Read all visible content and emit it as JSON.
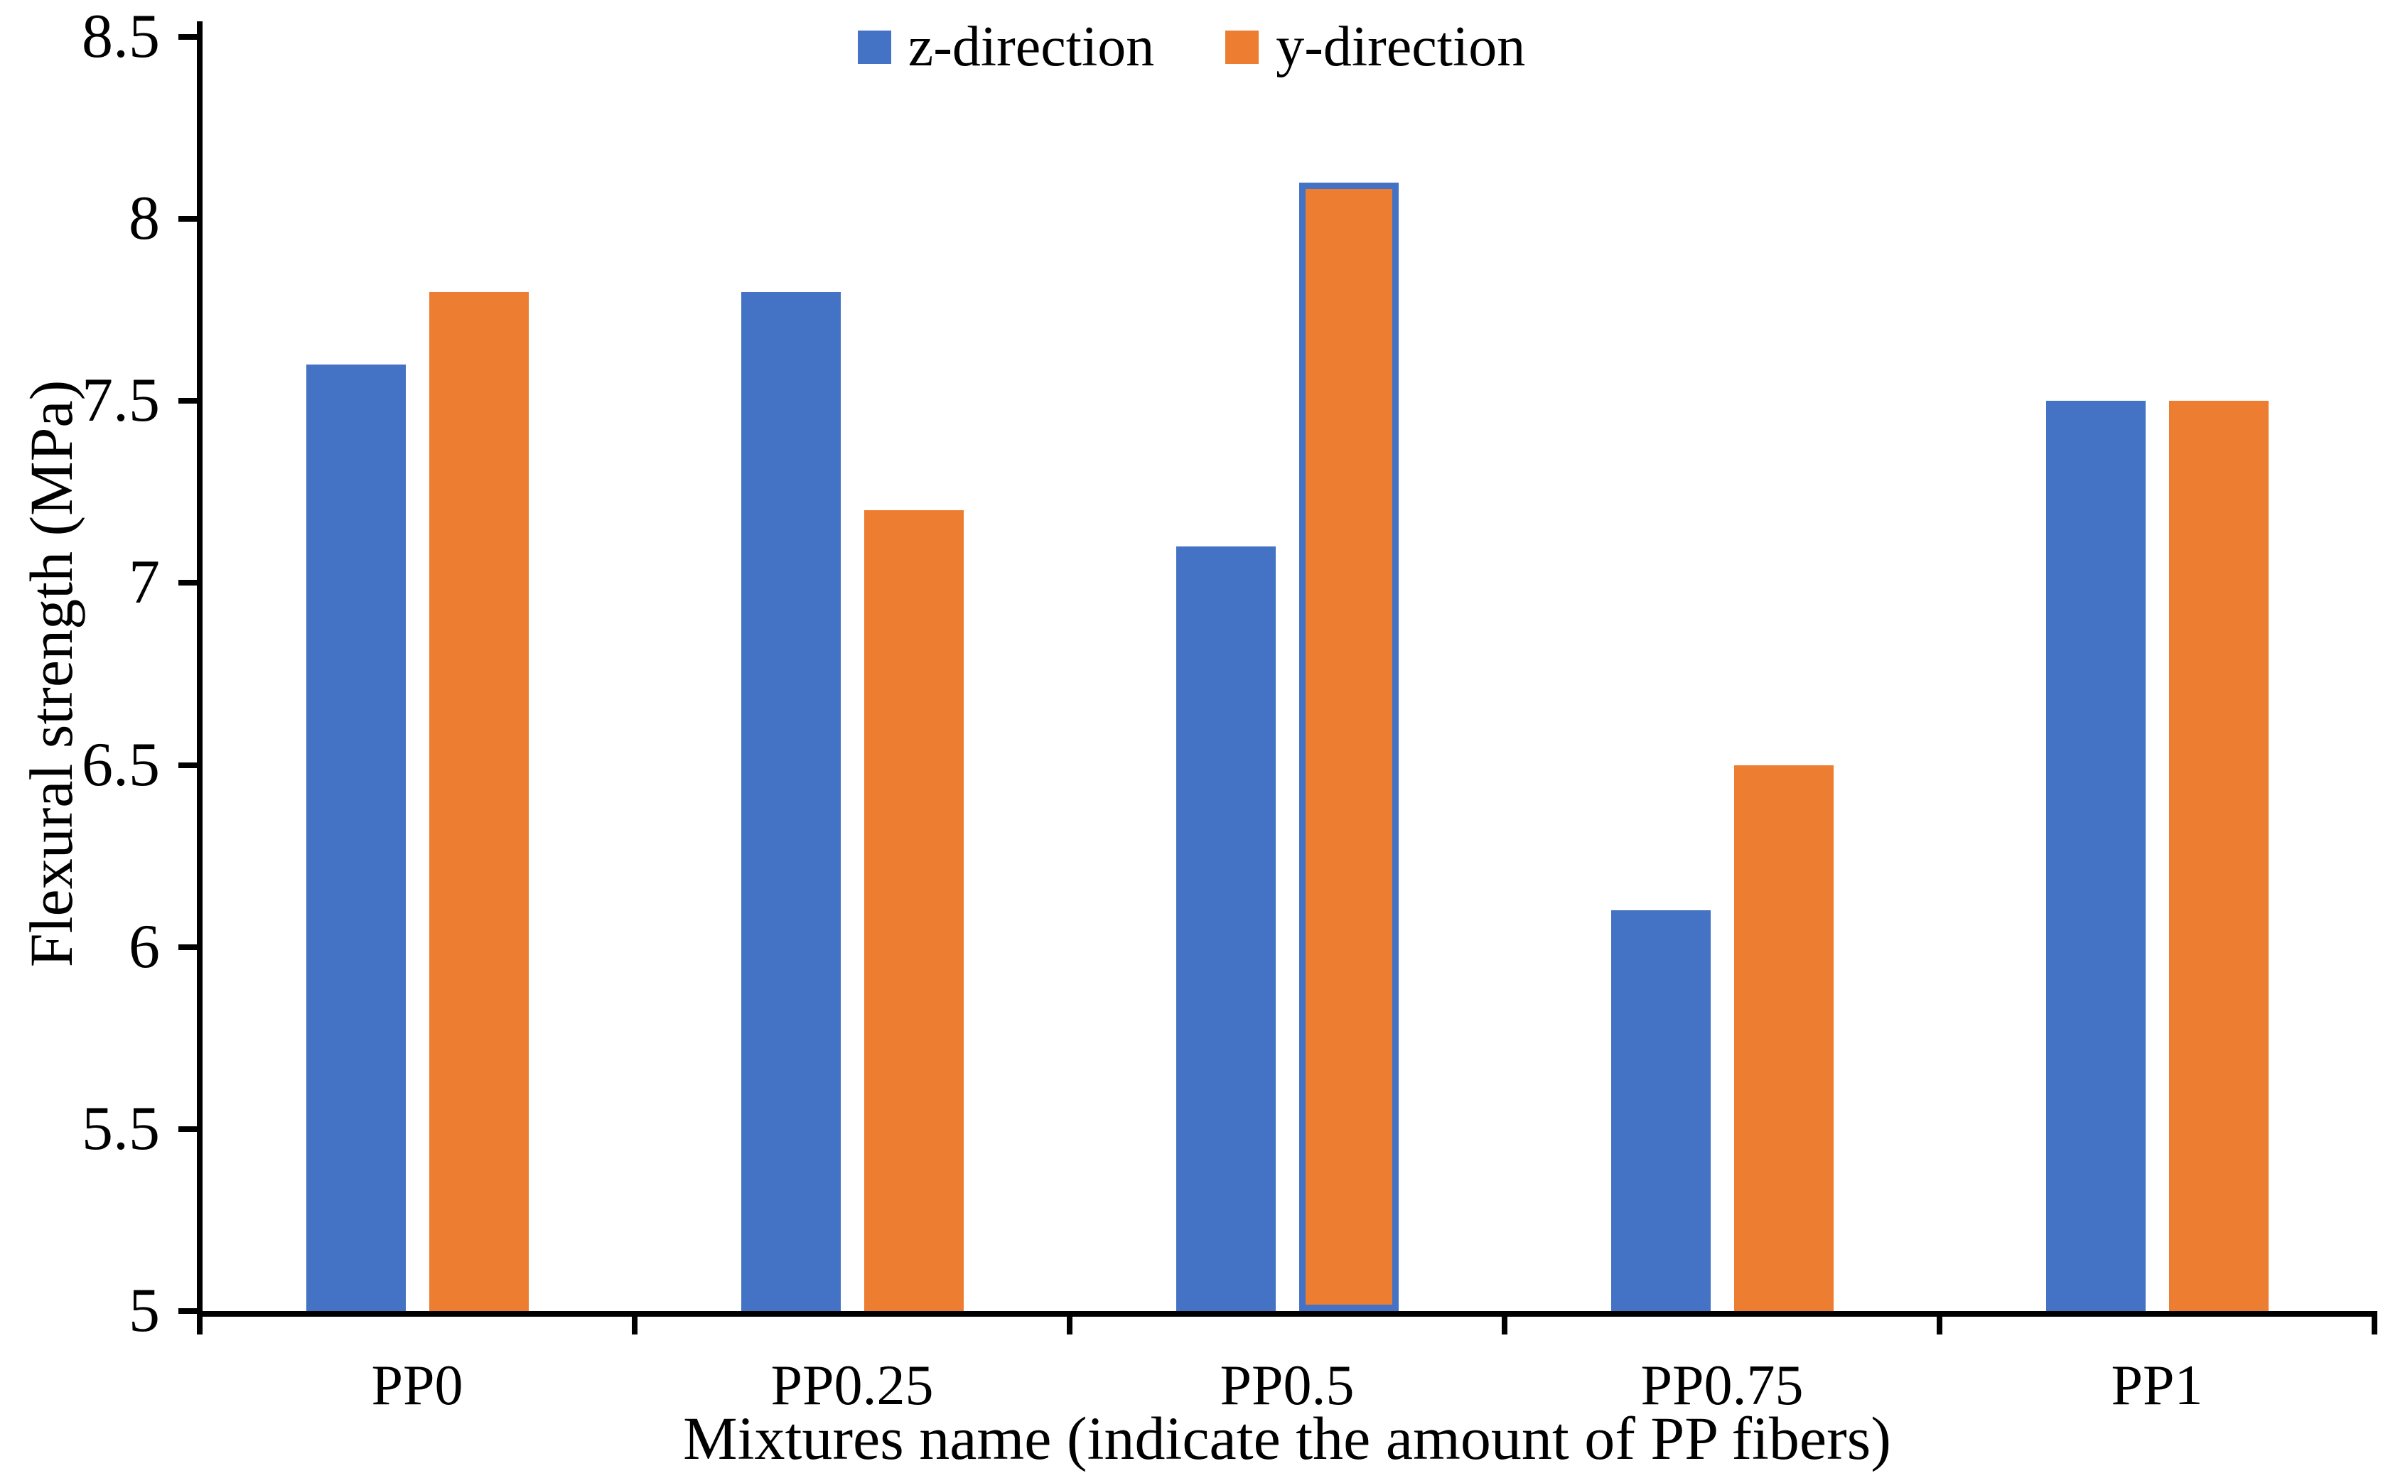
{
  "chart_data": {
    "type": "bar",
    "categories": [
      "PP0",
      "PP0.25",
      "PP0.5",
      "PP0.75",
      "PP1"
    ],
    "series": [
      {
        "name": "z-direction",
        "color": "#4472C4",
        "values": [
          7.6,
          7.8,
          7.1,
          6.1,
          7.5
        ]
      },
      {
        "name": "y-direction",
        "color": "#ED7D31",
        "values": [
          7.8,
          7.2,
          8.1,
          6.5,
          7.5
        ]
      }
    ],
    "title": "",
    "xlabel": "Mixtures name (indicate the amount of PP fibers)",
    "ylabel": "Flexural strength (MPa)",
    "ylim": [
      5,
      8.5
    ],
    "ytick_step": 0.5,
    "ytick_labels": [
      "8.5",
      "8",
      "7.5",
      "7",
      "6.5",
      "6",
      "5.5",
      "5"
    ],
    "grid": false,
    "legend_position": "top-center",
    "axis_color": "#000000",
    "background_color": "#FFFFFF",
    "outlined_bar": {
      "category": "PP0.5",
      "series": "y-direction",
      "outline_color": "#4472C4"
    }
  }
}
